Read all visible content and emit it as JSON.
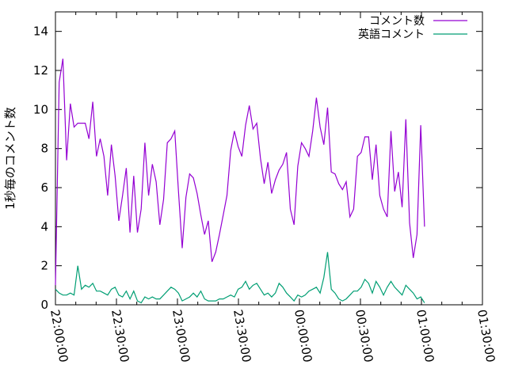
{
  "chart_data": {
    "type": "line",
    "title": "",
    "ylabel": "1秒毎のコメント数",
    "xlabel": "",
    "ylim": [
      0,
      15
    ],
    "xlim": [
      "22:00:00",
      "01:30:00"
    ],
    "x_ticks": [
      "22:00:00",
      "22:30:00",
      "23:00:00",
      "23:30:00",
      "00:00:00",
      "00:30:00",
      "01:00:00",
      "01:30:00"
    ],
    "y_ticks": [
      "0",
      "2",
      "4",
      "6",
      "8",
      "10",
      "12",
      "14"
    ],
    "legend_position": "top-right",
    "grid": false,
    "x_start": "22:00:00",
    "x_step_seconds": 110,
    "series": [
      {
        "name": "コメント数",
        "color": "#9400d3",
        "values": [
          1.0,
          11.4,
          12.6,
          7.4,
          10.3,
          9.1,
          9.3,
          9.3,
          9.3,
          8.5,
          10.4,
          7.6,
          8.5,
          7.6,
          5.6,
          8.2,
          6.6,
          4.3,
          5.6,
          7.0,
          3.7,
          6.6,
          3.7,
          4.9,
          8.3,
          5.6,
          7.2,
          6.3,
          4.1,
          5.4,
          8.3,
          8.5,
          8.9,
          5.8,
          2.9,
          5.5,
          6.7,
          6.5,
          5.7,
          4.6,
          3.6,
          4.3,
          2.2,
          2.7,
          3.6,
          4.6,
          5.6,
          7.9,
          8.9,
          8.1,
          7.6,
          9.2,
          10.2,
          9.0,
          9.3,
          7.5,
          6.2,
          7.3,
          5.7,
          6.4,
          6.9,
          7.2,
          7.8,
          4.9,
          4.1,
          7.1,
          8.3,
          8.0,
          7.6,
          8.9,
          10.6,
          9.1,
          8.2,
          10.1,
          6.8,
          6.7,
          6.2,
          5.9,
          6.3,
          4.5,
          4.9,
          7.6,
          7.8,
          8.6,
          8.6,
          6.4,
          8.2,
          5.6,
          4.9,
          4.5,
          8.9,
          5.8,
          6.8,
          5.0,
          9.5,
          4.2,
          2.4,
          3.6,
          9.2,
          4.0
        ]
      },
      {
        "name": "英語コメント",
        "color": "#009e73",
        "values": [
          0.8,
          0.6,
          0.5,
          0.5,
          0.6,
          0.5,
          2.0,
          0.8,
          1.0,
          0.9,
          1.1,
          0.7,
          0.7,
          0.6,
          0.5,
          0.8,
          0.9,
          0.5,
          0.4,
          0.7,
          0.3,
          0.7,
          0.2,
          0.1,
          0.4,
          0.3,
          0.4,
          0.3,
          0.3,
          0.5,
          0.7,
          0.9,
          0.8,
          0.6,
          0.2,
          0.3,
          0.4,
          0.6,
          0.4,
          0.7,
          0.3,
          0.2,
          0.2,
          0.2,
          0.3,
          0.3,
          0.4,
          0.5,
          0.4,
          0.8,
          0.9,
          1.2,
          0.8,
          1.0,
          1.1,
          0.8,
          0.5,
          0.6,
          0.4,
          0.6,
          1.1,
          0.9,
          0.6,
          0.4,
          0.2,
          0.5,
          0.4,
          0.5,
          0.7,
          0.8,
          0.9,
          0.6,
          1.4,
          2.7,
          0.8,
          0.6,
          0.3,
          0.2,
          0.3,
          0.5,
          0.7,
          0.7,
          0.9,
          1.3,
          1.1,
          0.6,
          1.2,
          0.9,
          0.5,
          0.9,
          1.2,
          0.9,
          0.7,
          0.5,
          1.0,
          0.8,
          0.6,
          0.3,
          0.4,
          0.1
        ]
      }
    ]
  }
}
